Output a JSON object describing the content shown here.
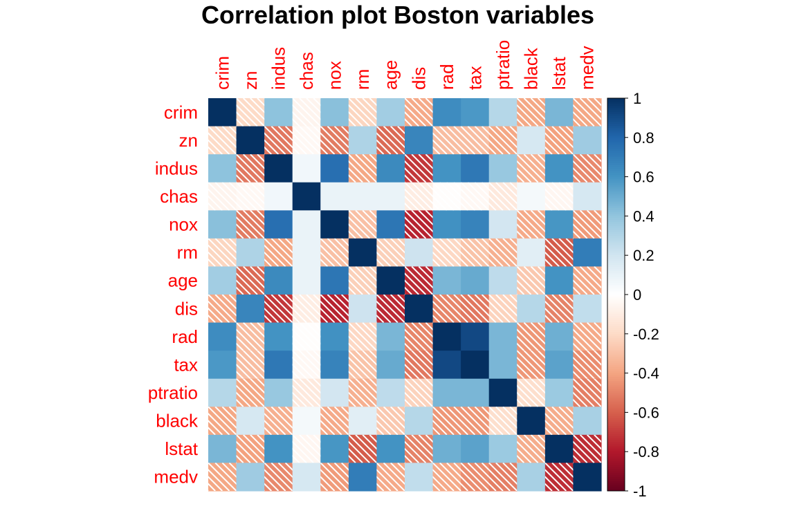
{
  "chart_data": {
    "type": "heatmap",
    "title": "Correlation plot Boston variables",
    "variables": [
      "crim",
      "zn",
      "indus",
      "chas",
      "nox",
      "rm",
      "age",
      "dis",
      "rad",
      "tax",
      "ptratio",
      "black",
      "lstat",
      "medv"
    ],
    "values": [
      [
        1.0,
        -0.2,
        0.41,
        -0.06,
        0.42,
        -0.22,
        0.35,
        -0.38,
        0.63,
        0.58,
        0.29,
        -0.39,
        0.46,
        -0.39
      ],
      [
        -0.2,
        1.0,
        -0.53,
        -0.04,
        -0.52,
        0.31,
        -0.57,
        0.66,
        -0.31,
        -0.31,
        -0.39,
        0.18,
        -0.41,
        0.36
      ],
      [
        0.41,
        -0.53,
        1.0,
        0.06,
        0.76,
        -0.39,
        0.64,
        -0.71,
        0.6,
        0.72,
        0.38,
        -0.36,
        0.6,
        -0.48
      ],
      [
        -0.06,
        -0.04,
        0.06,
        1.0,
        0.09,
        0.09,
        0.09,
        -0.1,
        -0.01,
        -0.04,
        -0.12,
        0.05,
        -0.05,
        0.18
      ],
      [
        0.42,
        -0.52,
        0.76,
        0.09,
        1.0,
        -0.3,
        0.73,
        -0.77,
        0.61,
        0.67,
        0.19,
        -0.38,
        0.59,
        -0.43
      ],
      [
        -0.22,
        0.31,
        -0.39,
        0.09,
        -0.3,
        1.0,
        -0.24,
        0.21,
        -0.21,
        -0.29,
        -0.36,
        0.13,
        -0.61,
        0.7
      ],
      [
        0.35,
        -0.57,
        0.64,
        0.09,
        0.73,
        -0.24,
        1.0,
        -0.75,
        0.46,
        0.51,
        0.26,
        -0.27,
        0.6,
        -0.38
      ],
      [
        -0.38,
        0.66,
        -0.71,
        -0.1,
        -0.77,
        0.21,
        -0.75,
        1.0,
        -0.49,
        -0.53,
        -0.23,
        0.29,
        -0.5,
        0.25
      ],
      [
        0.63,
        -0.31,
        0.6,
        -0.01,
        0.61,
        -0.21,
        0.46,
        -0.49,
        1.0,
        0.91,
        0.46,
        -0.44,
        0.49,
        -0.38
      ],
      [
        0.58,
        -0.31,
        0.72,
        -0.04,
        0.67,
        -0.29,
        0.51,
        -0.53,
        0.91,
        1.0,
        0.46,
        -0.44,
        0.54,
        -0.47
      ],
      [
        0.29,
        -0.39,
        0.38,
        -0.12,
        0.19,
        -0.36,
        0.26,
        -0.23,
        0.46,
        0.46,
        1.0,
        -0.18,
        0.37,
        -0.51
      ],
      [
        -0.39,
        0.18,
        -0.36,
        0.05,
        -0.38,
        0.13,
        -0.27,
        0.29,
        -0.44,
        -0.44,
        -0.18,
        1.0,
        -0.37,
        0.33
      ],
      [
        0.46,
        -0.41,
        0.6,
        -0.05,
        0.59,
        -0.61,
        0.6,
        -0.5,
        0.49,
        0.54,
        0.37,
        -0.37,
        1.0,
        -0.74
      ],
      [
        -0.39,
        0.36,
        -0.48,
        0.18,
        -0.43,
        0.7,
        -0.38,
        0.25,
        -0.38,
        -0.47,
        -0.51,
        0.33,
        -0.74,
        1.0
      ]
    ],
    "value_range": [
      -1,
      1
    ],
    "negative_cells_hatched": true,
    "colorbar": {
      "ticks": [
        1,
        0.8,
        0.6,
        0.4,
        0.2,
        0,
        -0.2,
        -0.4,
        -0.6,
        -0.8,
        -1
      ],
      "tick_labels": [
        "1",
        "0.8",
        "0.6",
        "0.4",
        "0.2",
        "0",
        "-0.2",
        "-0.4",
        "-0.6",
        "-0.8",
        "-1"
      ]
    },
    "color_scale": [
      "#67001F",
      "#B2182B",
      "#D6604D",
      "#F4A582",
      "#FDDBC7",
      "#FFFFFF",
      "#D1E5F0",
      "#92C5DE",
      "#4393C3",
      "#2166AC",
      "#053061"
    ],
    "label_color": "#FF0000",
    "legend": "right",
    "grid": false
  }
}
